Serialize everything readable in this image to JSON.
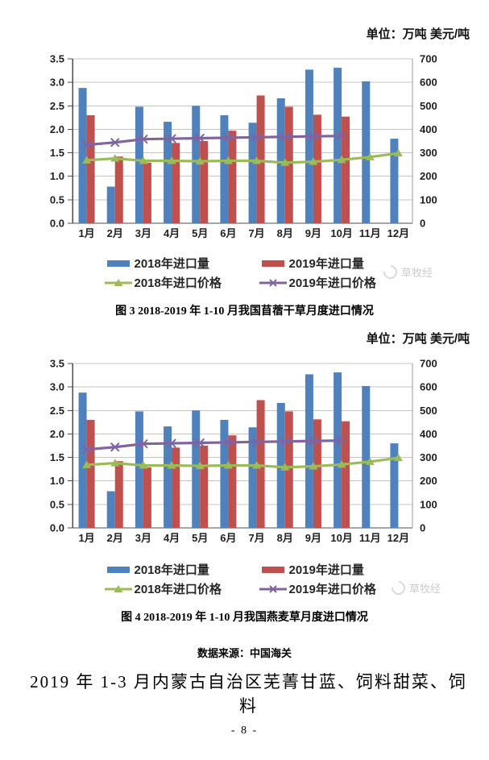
{
  "page": {
    "number_label": "- 8 -",
    "data_source": "数据来源：中国海关",
    "section_heading": "2019 年 1-3 月内蒙古自治区芜菁甘蓝、饲料甜菜、饲料",
    "watermark": "草牧经"
  },
  "legend": {
    "items": [
      {
        "label": "2018年进口量",
        "type": "bar",
        "color": "#4F81BD"
      },
      {
        "label": "2019年进口量",
        "type": "bar",
        "color": "#C0504D"
      },
      {
        "label": "2018年进口价格",
        "type": "line-triangle",
        "color": "#9BBB59"
      },
      {
        "label": "2019年进口价格",
        "type": "line-x",
        "color": "#8064A2"
      }
    ]
  },
  "chart_data": [
    {
      "type": "bar",
      "combo": "bar+line dual-axis",
      "title": "图 3  2018-2019 年 1-10 月我国苜蓿干草月度进口情况",
      "units_label": "单位：万吨 美元/吨",
      "categories": [
        "1月",
        "2月",
        "3月",
        "4月",
        "5月",
        "6月",
        "7月",
        "8月",
        "9月",
        "10月",
        "11月",
        "12月"
      ],
      "left_axis": {
        "min": 0,
        "max": 3.5,
        "step": 0.5,
        "label": "万吨"
      },
      "right_axis": {
        "min": 0,
        "max": 700,
        "step": 100,
        "label": "美元/吨"
      },
      "grid": true,
      "legend_position": "bottom",
      "series": [
        {
          "name": "2018年进口量",
          "type": "bar",
          "axis": "left",
          "color": "#4F81BD",
          "values": [
            2.88,
            0.78,
            2.48,
            2.16,
            2.5,
            2.3,
            2.14,
            2.66,
            3.27,
            3.31,
            3.02,
            1.8
          ]
        },
        {
          "name": "2019年进口量",
          "type": "bar",
          "axis": "left",
          "color": "#C0504D",
          "values": [
            2.3,
            1.42,
            1.29,
            1.71,
            1.75,
            1.97,
            2.72,
            2.48,
            2.31,
            2.27,
            null,
            null
          ]
        },
        {
          "name": "2018年进口价格",
          "type": "line",
          "marker": "triangle",
          "axis": "right",
          "color": "#9BBB59",
          "values": [
            268,
            276,
            266,
            266,
            264,
            266,
            266,
            258,
            262,
            270,
            282,
            298
          ]
        },
        {
          "name": "2019年进口价格",
          "type": "line",
          "marker": "x",
          "axis": "right",
          "color": "#8064A2",
          "values": [
            334,
            344,
            358,
            360,
            362,
            364,
            366,
            368,
            370,
            372,
            null,
            null
          ]
        }
      ]
    },
    {
      "type": "bar",
      "combo": "bar+line dual-axis",
      "title": "图 4  2018-2019 年 1-10 月我国燕麦草月度进口情况",
      "units_label": "单位：万吨 美元/吨",
      "categories": [
        "1月",
        "2月",
        "3月",
        "4月",
        "5月",
        "6月",
        "7月",
        "8月",
        "9月",
        "10月",
        "11月",
        "12月"
      ],
      "left_axis": {
        "min": 0,
        "max": 3.5,
        "step": 0.5,
        "label": "万吨"
      },
      "right_axis": {
        "min": 0,
        "max": 700,
        "step": 100,
        "label": "美元/吨"
      },
      "grid": true,
      "legend_position": "bottom",
      "series": [
        {
          "name": "2018年进口量",
          "type": "bar",
          "axis": "left",
          "color": "#4F81BD",
          "values": [
            2.88,
            0.78,
            2.48,
            2.16,
            2.5,
            2.3,
            2.14,
            2.66,
            3.27,
            3.31,
            3.02,
            1.8
          ]
        },
        {
          "name": "2019年进口量",
          "type": "bar",
          "axis": "left",
          "color": "#C0504D",
          "values": [
            2.3,
            1.42,
            1.29,
            1.71,
            1.75,
            1.97,
            2.72,
            2.48,
            2.31,
            2.27,
            null,
            null
          ]
        },
        {
          "name": "2018年进口价格",
          "type": "line",
          "marker": "triangle",
          "axis": "right",
          "color": "#9BBB59",
          "values": [
            268,
            276,
            266,
            266,
            264,
            266,
            266,
            258,
            262,
            270,
            282,
            298
          ]
        },
        {
          "name": "2019年进口价格",
          "type": "line",
          "marker": "x",
          "axis": "right",
          "color": "#8064A2",
          "values": [
            334,
            344,
            358,
            360,
            362,
            364,
            366,
            368,
            370,
            372,
            null,
            null
          ]
        }
      ]
    }
  ]
}
